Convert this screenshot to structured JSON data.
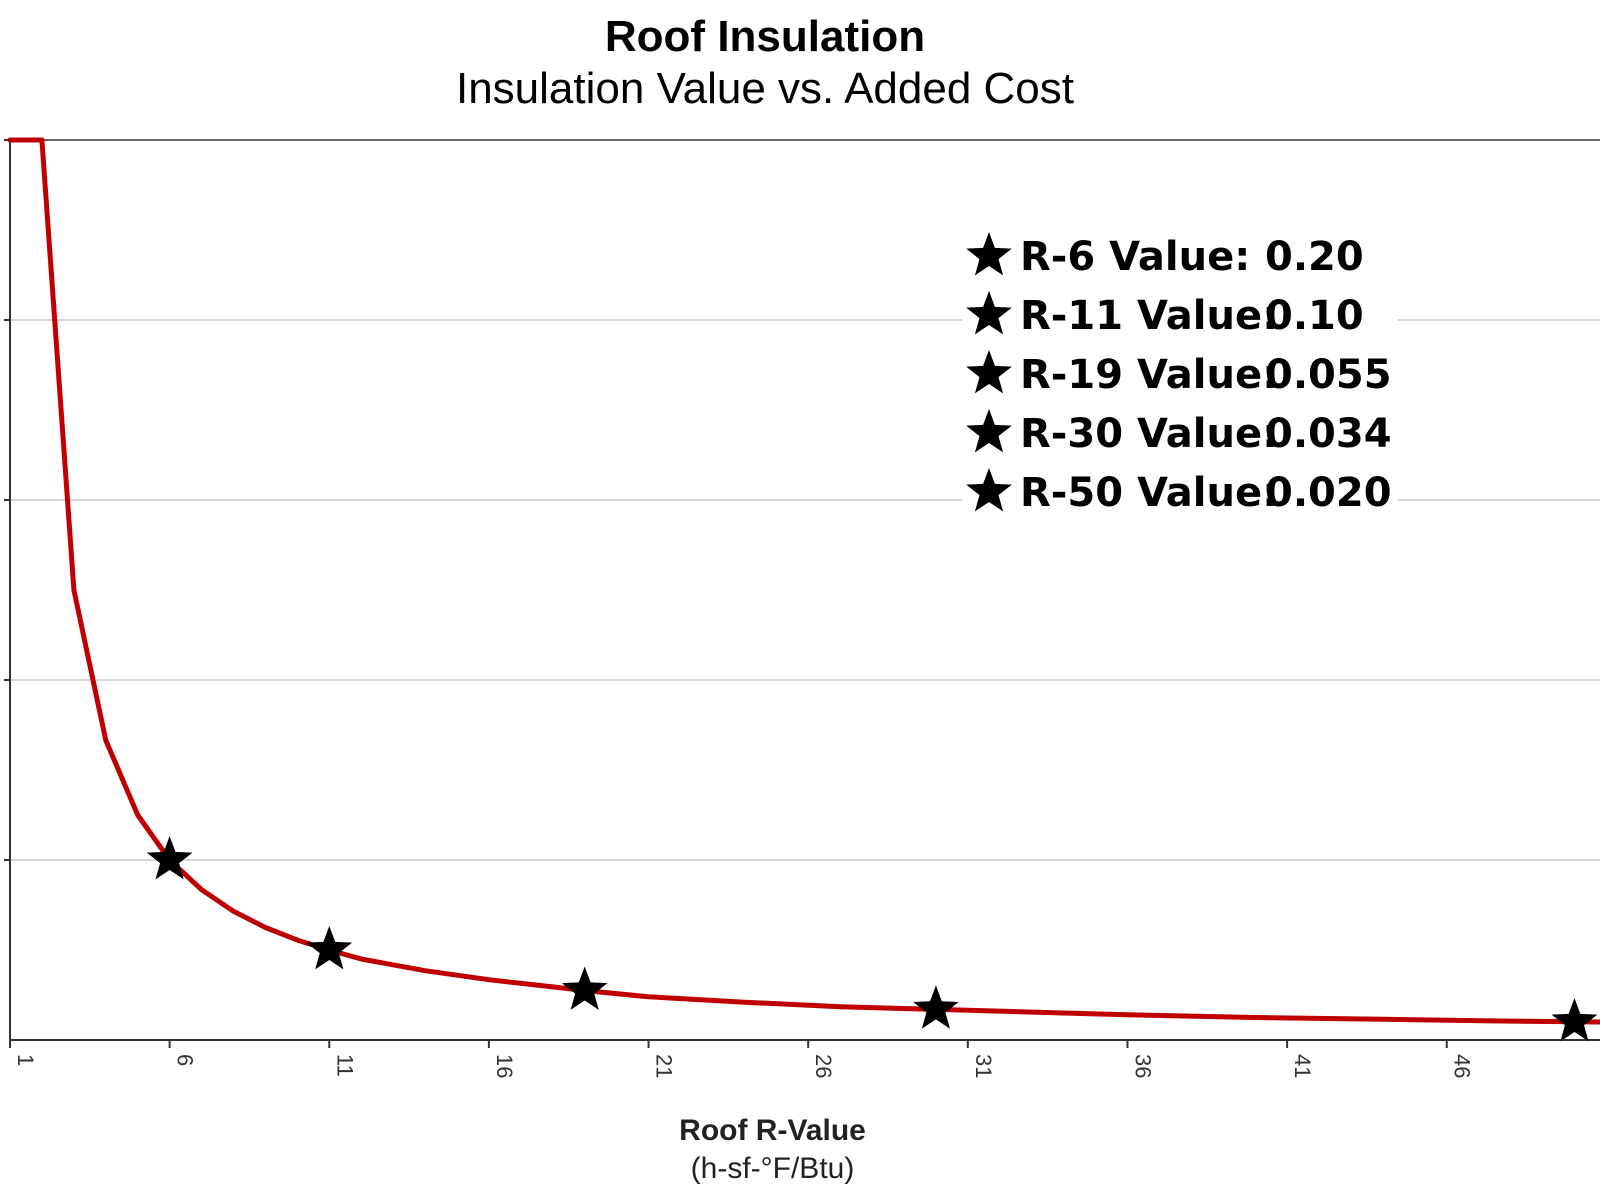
{
  "chart_data": {
    "type": "line",
    "title": "Roof Insulation",
    "subtitle": "Insulation Value vs. Added Cost",
    "xlabel": "Roof R-Value",
    "xunits": "(h-sf-°F/Btu)",
    "ylabel": "",
    "x_ticks": [
      "1",
      "6",
      "11",
      "16",
      "21",
      "26",
      "31",
      "36",
      "41",
      "46"
    ],
    "xlim": [
      1,
      50.8
    ],
    "ylim": [
      0,
      1.0
    ],
    "grid": true,
    "series": [
      {
        "color": "#c00000",
        "x": [
          1,
          2,
          3,
          4,
          5,
          6,
          7,
          8,
          9,
          10,
          11,
          12,
          14,
          16,
          18,
          19,
          21,
          24,
          27,
          30,
          33,
          36,
          40,
          44,
          48,
          50.8
        ],
        "y": [
          1.0,
          1.0,
          0.5,
          0.333,
          0.25,
          0.2,
          0.167,
          0.143,
          0.125,
          0.111,
          0.1,
          0.09,
          0.077,
          0.067,
          0.059,
          0.055,
          0.048,
          0.042,
          0.037,
          0.034,
          0.031,
          0.028,
          0.025,
          0.023,
          0.021,
          0.02
        ]
      }
    ],
    "markers": [
      {
        "x": 6,
        "y": 0.2
      },
      {
        "x": 11,
        "y": 0.1
      },
      {
        "x": 19,
        "y": 0.055
      },
      {
        "x": 30,
        "y": 0.034
      },
      {
        "x": 50,
        "y": 0.02
      }
    ],
    "legend": {
      "placement": "top-right",
      "entries": [
        {
          "label": "R-6 Value:",
          "value": "0.20"
        },
        {
          "label": "R-11 Value:",
          "value": "0.10"
        },
        {
          "label": "R-19 Value:",
          "value": "0.055"
        },
        {
          "label": "R-30 Value:",
          "value": "0.034"
        },
        {
          "label": "R-50 Value:",
          "value": "0.020"
        }
      ]
    }
  }
}
